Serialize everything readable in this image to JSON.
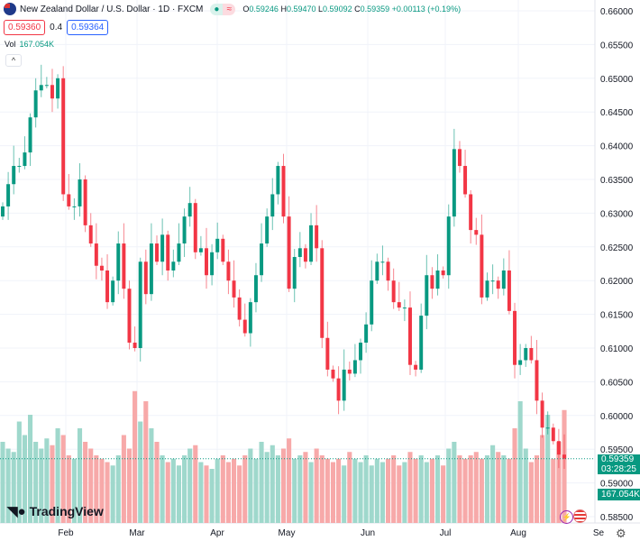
{
  "header": {
    "title": "New Zealand Dollar / U.S. Dollar · 1D · FXCM",
    "o_label": "O",
    "o": "0.59246",
    "h_label": "H",
    "h": "0.59470",
    "l_label": "L",
    "l": "0.59092",
    "c_label": "C",
    "c": "0.59359",
    "change": "+0.00113 (+0.19%)",
    "bid": "0.59360",
    "spread": "0.4",
    "ask": "0.59364",
    "vol_label": "Vol",
    "vol": "167.054K",
    "collapse": "^"
  },
  "price_tag": {
    "price": "0.59359",
    "countdown": "03:28:25",
    "volume": "167.054K"
  },
  "time_axis": [
    "Feb",
    "Mar",
    "Apr",
    "May",
    "Jun",
    "Jul",
    "Aug",
    "Se"
  ],
  "logo": "TradingView",
  "colors": {
    "up": "#089981",
    "down": "#f23645",
    "up_vol": "#9fd8cc",
    "down_vol": "#f7a9a9"
  },
  "chart_data": {
    "type": "candlestick",
    "title": "New Zealand Dollar / U.S. Dollar · 1D · FXCM",
    "ylim": [
      0.585,
      0.66
    ],
    "y_ticks": [
      "0.66000",
      "0.65500",
      "0.65000",
      "0.64500",
      "0.64000",
      "0.63500",
      "0.63000",
      "0.62500",
      "0.62000",
      "0.61500",
      "0.61000",
      "0.60500",
      "0.60000",
      "0.59500",
      "0.59000",
      "0.58500"
    ],
    "first_open": 0.6295,
    "close": [
      0.631,
      0.6343,
      0.637,
      0.637,
      0.639,
      0.6442,
      0.6482,
      0.649,
      0.649,
      0.647,
      0.65,
      0.6328,
      0.631,
      0.631,
      0.635,
      0.6282,
      0.6255,
      0.6222,
      0.6215,
      0.6168,
      0.62,
      0.6255,
      0.6188,
      0.6108,
      0.61,
      0.6228,
      0.618,
      0.6255,
      0.6228,
      0.6268,
      0.6215,
      0.6228,
      0.6255,
      0.6295,
      0.6315,
      0.6242,
      0.6248,
      0.6208,
      0.6242,
      0.6262,
      0.6228,
      0.62,
      0.6175,
      0.6142,
      0.6122,
      0.6168,
      0.6208,
      0.6255,
      0.6295,
      0.6328,
      0.637,
      0.6295,
      0.6188,
      0.6235,
      0.6248,
      0.6228,
      0.6282,
      0.6248,
      0.6115,
      0.6068,
      0.6055,
      0.6022,
      0.6068,
      0.6062,
      0.6082,
      0.6108,
      0.6135,
      0.62,
      0.6228,
      0.6228,
      0.62,
      0.6168,
      0.616,
      0.616,
      0.6075,
      0.6068,
      0.6148,
      0.6208,
      0.6188,
      0.6215,
      0.6208,
      0.6295,
      0.6395,
      0.637,
      0.6328,
      0.6275,
      0.6268,
      0.6175,
      0.62,
      0.62,
      0.6188,
      0.6215,
      0.6155,
      0.6075,
      0.6082,
      0.61,
      0.6082,
      0.6022,
      0.5982,
      0.5982,
      0.5962,
      0.5942,
      0.59359
    ],
    "volume_k": [
      120,
      110,
      105,
      150,
      130,
      160,
      120,
      110,
      125,
      115,
      140,
      130,
      100,
      95,
      140,
      120,
      110,
      100,
      95,
      90,
      85,
      100,
      130,
      110,
      195,
      150,
      180,
      140,
      120,
      100,
      90,
      95,
      85,
      100,
      110,
      115,
      90,
      85,
      80,
      95,
      100,
      90,
      95,
      85,
      100,
      110,
      95,
      120,
      105,
      115,
      100,
      110,
      125,
      95,
      100,
      105,
      90,
      110,
      100,
      95,
      90,
      95,
      85,
      105,
      95,
      90,
      100,
      85,
      95,
      90,
      95,
      100,
      85,
      90,
      105,
      95,
      100,
      90,
      95,
      100,
      85,
      110,
      120,
      100,
      95,
      100,
      105,
      95,
      100,
      115,
      105,
      100,
      95,
      140,
      180,
      110,
      90,
      100,
      130,
      160,
      95,
      120,
      167
    ]
  }
}
